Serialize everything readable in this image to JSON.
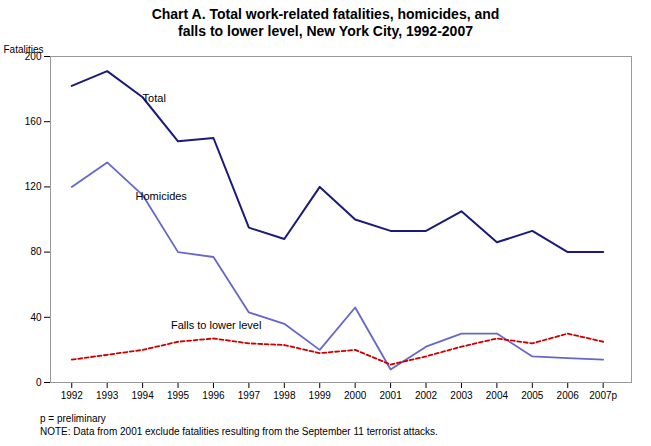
{
  "chart_data": {
    "type": "line",
    "title": "Chart A. Total work-related fatalities, homicides, and\nfalls to lower level, New York City, 1992-2007",
    "ylabel": "Fatalities",
    "x": [
      1992,
      1993,
      1994,
      1995,
      1996,
      1997,
      1998,
      1999,
      2000,
      2001,
      2002,
      2003,
      2004,
      2005,
      2006,
      2007
    ],
    "series": [
      {
        "name": "Total",
        "color": "#1a1a7a",
        "line_style": "solid",
        "values": [
          182,
          191,
          175,
          148,
          150,
          95,
          88,
          120,
          100,
          93,
          93,
          105,
          86,
          93,
          80,
          80
        ]
      },
      {
        "name": "Homicides",
        "color": "#6666cc",
        "line_style": "solid",
        "values": [
          120,
          135,
          115,
          80,
          77,
          43,
          36,
          20,
          46,
          8,
          22,
          30,
          30,
          16,
          15,
          14
        ]
      },
      {
        "name": "Falls to lower level",
        "color": "#cc0000",
        "line_style": "dashed",
        "values": [
          14,
          17,
          20,
          25,
          27,
          24,
          23,
          18,
          20,
          11,
          16,
          22,
          27,
          24,
          30,
          25
        ]
      }
    ],
    "annotations": [
      {
        "text": "Total",
        "x": 1994.0,
        "y": 172
      },
      {
        "text": "Homicides",
        "x": 1993.8,
        "y": 112
      },
      {
        "text": "Falls to lower level",
        "x": 1994.8,
        "y": 33
      }
    ],
    "xlim": [
      1991.4,
      2007.8
    ],
    "xticks": [
      1992,
      1993,
      1994,
      1995,
      1996,
      1997,
      1998,
      1999,
      2000,
      2001,
      2002,
      2003,
      2004,
      2005,
      2006,
      {
        "value": 2007,
        "label": "2007p"
      }
    ],
    "ylim": [
      0,
      200
    ],
    "yticks": [
      0,
      40,
      80,
      120,
      160,
      200
    ],
    "grid": false,
    "notes": [
      "p = preliminary",
      "NOTE: Data from 2001 exclude fatalities resulting from the September 11 terrorist attacks."
    ]
  }
}
